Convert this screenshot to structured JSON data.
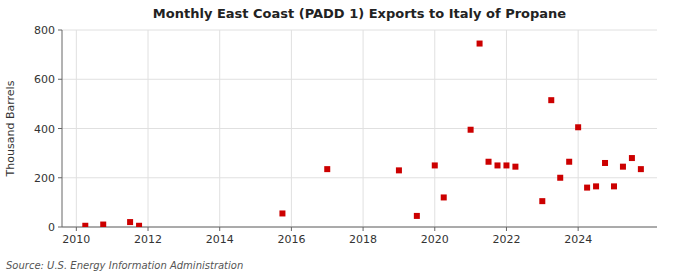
{
  "chart_data": {
    "type": "scatter",
    "title": "Monthly East Coast (PADD 1) Exports to Italy of Propane",
    "ylabel": "Thousand Barrels",
    "annotations": [
      "Source: U.S. Energy Information Administration"
    ],
    "color": "#cc0000",
    "marker": "square",
    "grid": true,
    "xlim": [
      2009.6,
      2026.2
    ],
    "ylim": [
      0,
      800
    ],
    "xticks": [
      2010,
      2012,
      2014,
      2016,
      2018,
      2020,
      2022,
      2024
    ],
    "yticks": [
      0,
      200,
      400,
      600,
      800
    ],
    "x": [
      2010.25,
      2010.75,
      2011.5,
      2011.75,
      2015.75,
      2017.0,
      2019.0,
      2019.5,
      2020.0,
      2020.25,
      2021.0,
      2021.25,
      2021.5,
      2021.75,
      2022.0,
      2022.25,
      2023.0,
      2023.25,
      2023.5,
      2023.75,
      2024.0,
      2024.25,
      2024.5,
      2024.75,
      2025.0,
      2025.25,
      2025.5,
      2025.75
    ],
    "values": [
      5,
      10,
      20,
      5,
      55,
      235,
      230,
      45,
      250,
      120,
      395,
      745,
      265,
      250,
      250,
      245,
      105,
      515,
      200,
      265,
      405,
      160,
      165,
      260,
      165,
      245,
      280,
      235
    ]
  }
}
